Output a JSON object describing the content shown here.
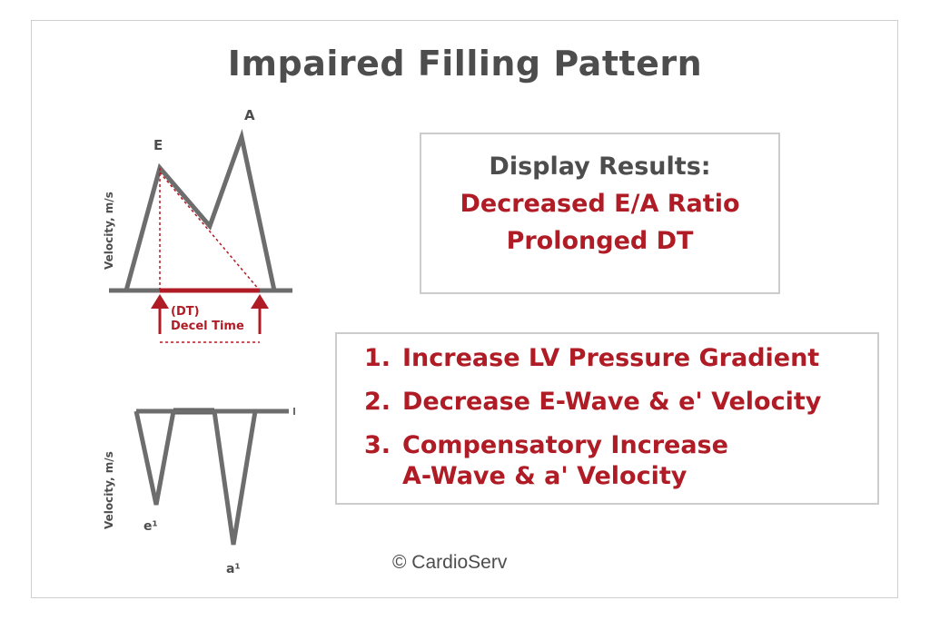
{
  "title": "Impaired Filling Pattern",
  "results": {
    "heading": "Display Results:",
    "lines": [
      "Decreased E/A Ratio",
      "Prolonged DT"
    ]
  },
  "steps": [
    {
      "number": "1.",
      "lines": [
        "Increase LV Pressure Gradient"
      ]
    },
    {
      "number": "2.",
      "lines": [
        "Decrease E-Wave & e' Velocity"
      ]
    },
    {
      "number": "3.",
      "lines": [
        "Compensatory Increase",
        "A-Wave & a' Velocity"
      ]
    }
  ],
  "mitral_doppler": {
    "y_axis_label": "Velocity, m/s",
    "peak_e_label": "E",
    "peak_a_label": "A",
    "dt_label_line1": "(DT)",
    "dt_label_line2": "Decel Time"
  },
  "tissue_doppler": {
    "y_axis_label": "Velocity, m/s",
    "peak_e_label": "e¹",
    "peak_a_label": "a¹"
  },
  "copyright": "© CardioServ",
  "colors": {
    "waveform": "#6d6d6d",
    "accent": "#b01c25",
    "text": "#4d4d4d",
    "border": "#cccccc"
  }
}
